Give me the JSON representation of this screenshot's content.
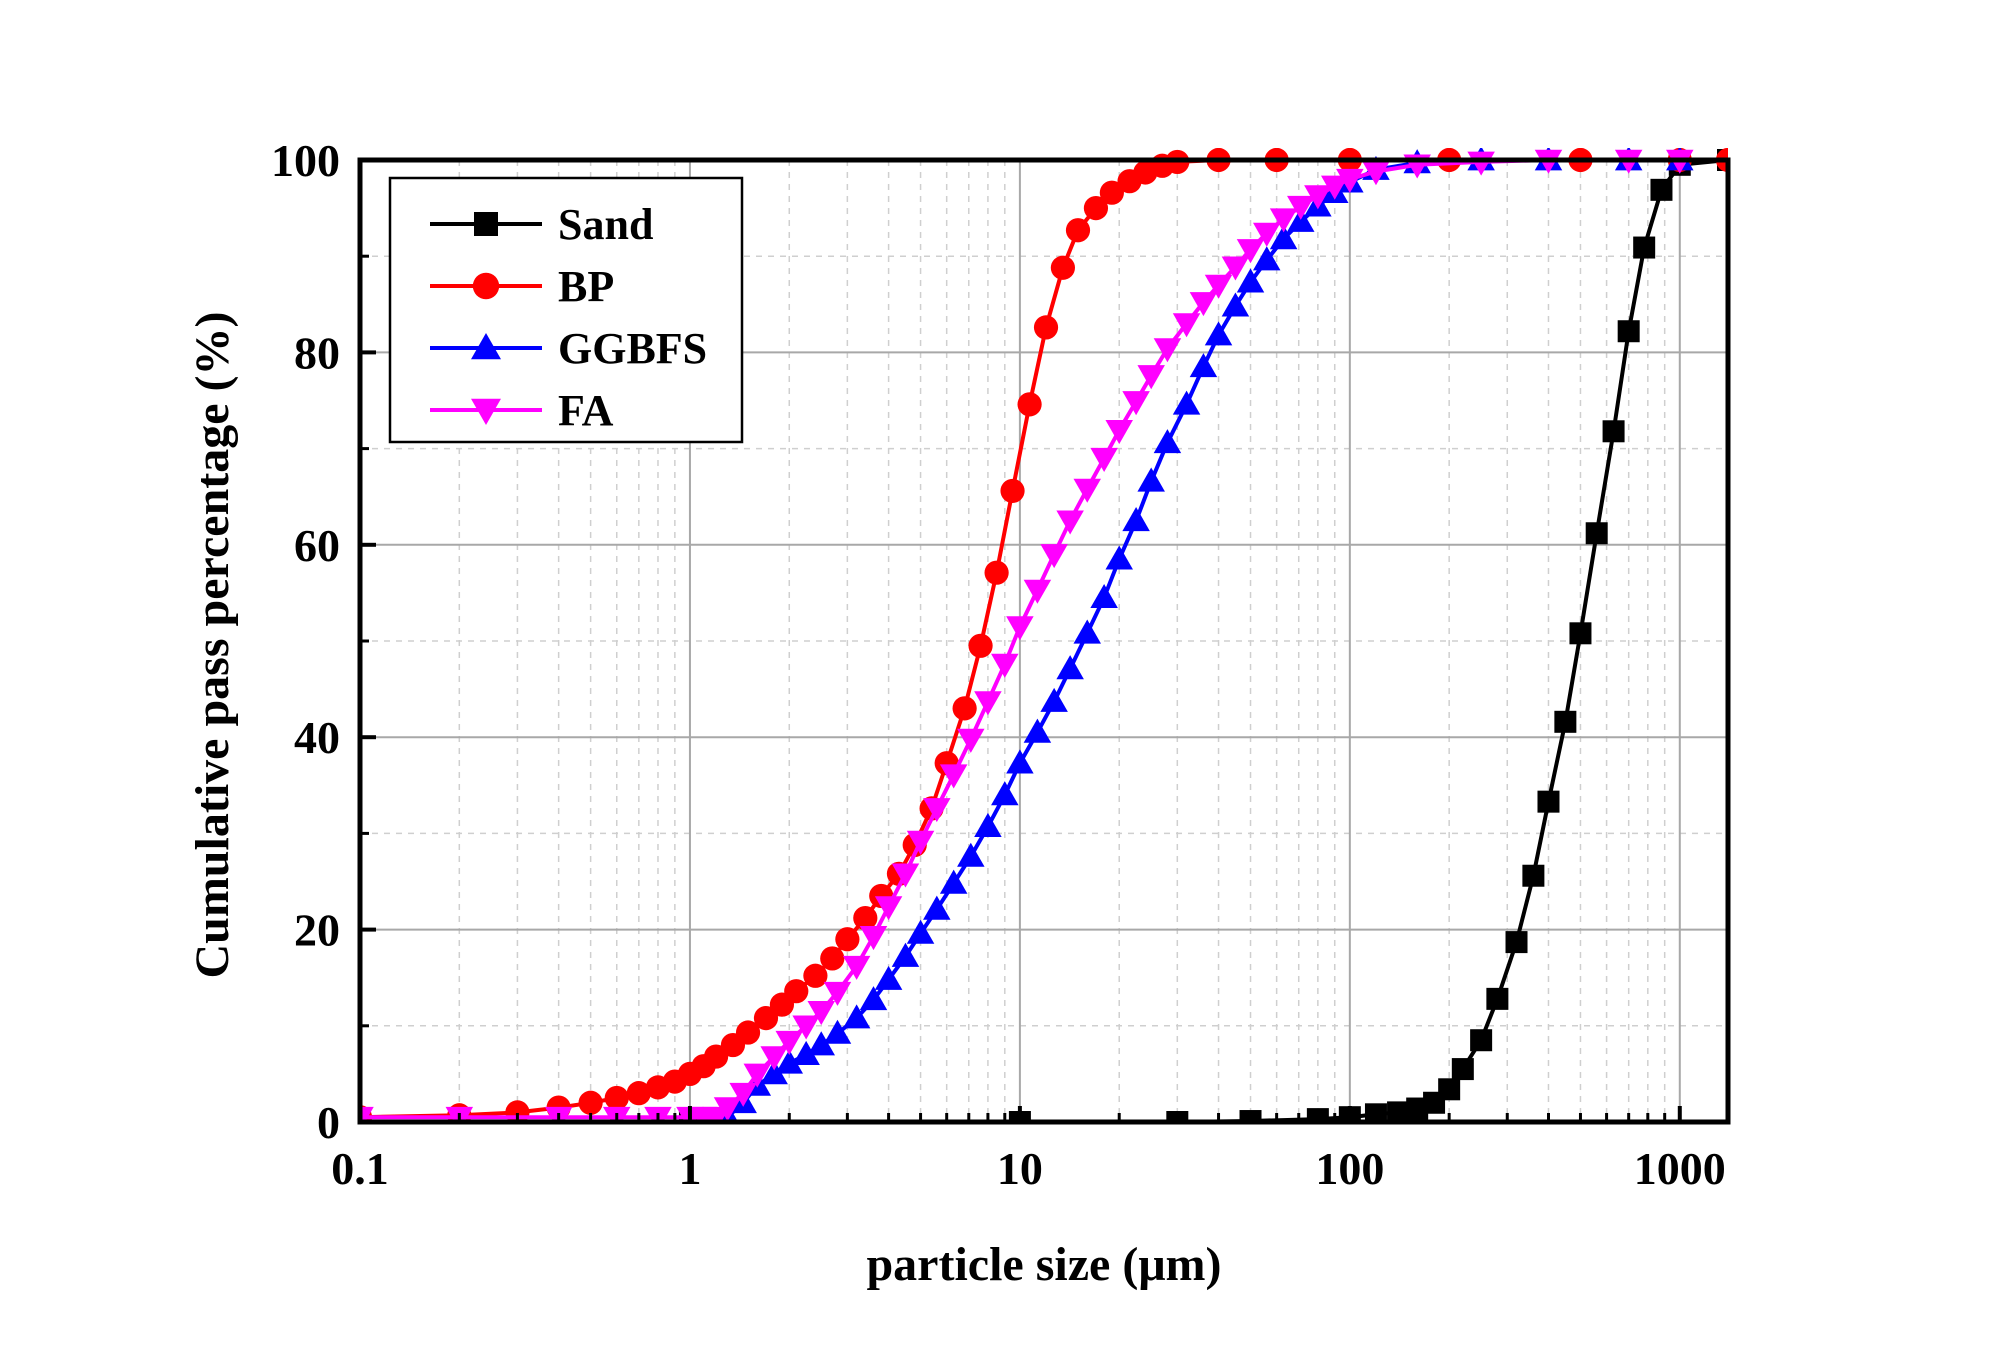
{
  "chart_data": {
    "type": "line",
    "title": "",
    "xlabel": "particle size (μm)",
    "ylabel": "Cumulative pass percentage (%)",
    "xscale": "log",
    "xlim": [
      0.1,
      1400
    ],
    "ylim": [
      0,
      100
    ],
    "x_ticks": [
      {
        "value": 0.1,
        "label": "0.1"
      },
      {
        "value": 1,
        "label": "1"
      },
      {
        "value": 10,
        "label": "10"
      },
      {
        "value": 100,
        "label": "100"
      },
      {
        "value": 1000,
        "label": "1000"
      }
    ],
    "y_ticks": [
      {
        "value": 0,
        "label": "0"
      },
      {
        "value": 20,
        "label": "20"
      },
      {
        "value": 40,
        "label": "40"
      },
      {
        "value": 60,
        "label": "60"
      },
      {
        "value": 80,
        "label": "80"
      },
      {
        "value": 100,
        "label": "100"
      }
    ],
    "grid": true,
    "legend_position": "top-left",
    "series": [
      {
        "name": "Sand",
        "color": "#000000",
        "marker": "square",
        "x": [
          0.1,
          1,
          10,
          30,
          50,
          80,
          100,
          120,
          140,
          160,
          180,
          200,
          220,
          250,
          280,
          320,
          360,
          400,
          450,
          500,
          560,
          630,
          700,
          780,
          880,
          1000,
          1400
        ],
        "y": [
          0,
          0,
          0,
          0,
          0.1,
          0.3,
          0.5,
          0.8,
          1.0,
          1.4,
          2.0,
          3.4,
          5.5,
          8.5,
          12.8,
          18.7,
          25.6,
          33.3,
          41.6,
          50.8,
          61.2,
          71.8,
          82.2,
          90.9,
          96.9,
          99.5,
          100
        ]
      },
      {
        "name": "BP",
        "color": "#ff0000",
        "marker": "circle",
        "x": [
          0.1,
          0.2,
          0.3,
          0.4,
          0.5,
          0.6,
          0.7,
          0.8,
          0.9,
          1.0,
          1.1,
          1.2,
          1.35,
          1.5,
          1.7,
          1.9,
          2.1,
          2.4,
          2.7,
          3.0,
          3.4,
          3.8,
          4.3,
          4.8,
          5.4,
          6.0,
          6.8,
          7.6,
          8.5,
          9.5,
          10.7,
          12.0,
          13.5,
          15.0,
          17.0,
          19.0,
          21.5,
          24.0,
          27.0,
          30.0,
          40.0,
          60.0,
          100,
          200,
          500,
          1000,
          1400
        ],
        "y": [
          0.5,
          0.7,
          1.0,
          1.5,
          2.0,
          2.5,
          3.0,
          3.6,
          4.2,
          5.0,
          5.8,
          6.8,
          8.0,
          9.3,
          10.8,
          12.2,
          13.6,
          15.2,
          17.0,
          19.0,
          21.2,
          23.5,
          25.8,
          28.8,
          32.6,
          37.3,
          43.0,
          49.5,
          57.1,
          65.6,
          74.6,
          82.6,
          88.8,
          92.7,
          95.0,
          96.6,
          97.8,
          98.7,
          99.4,
          99.8,
          100,
          100,
          100,
          100,
          100,
          100,
          100
        ]
      },
      {
        "name": "GGBFS",
        "color": "#0000ff",
        "marker": "triangle-up",
        "x": [
          0.1,
          0.2,
          0.4,
          0.6,
          0.8,
          1.0,
          1.1,
          1.2,
          1.3,
          1.45,
          1.6,
          1.8,
          2.0,
          2.25,
          2.5,
          2.8,
          3.2,
          3.6,
          4.0,
          4.5,
          5.0,
          5.6,
          6.3,
          7.1,
          8.0,
          9.0,
          10.0,
          11.3,
          12.7,
          14.2,
          16.0,
          18.0,
          20.0,
          22.5,
          25.0,
          28.0,
          32.0,
          36.0,
          40.0,
          45.0,
          50.0,
          56.0,
          63.0,
          71.0,
          80.0,
          90.0,
          100,
          120,
          160,
          250,
          400,
          700,
          1000
        ],
        "y": [
          0,
          0,
          0,
          0,
          0,
          0,
          0,
          0,
          0.5,
          2.0,
          3.8,
          5.0,
          6.1,
          7.0,
          8.0,
          9.2,
          10.8,
          12.7,
          14.8,
          17.2,
          19.6,
          22.1,
          24.8,
          27.6,
          30.7,
          34.0,
          37.3,
          40.5,
          43.7,
          47.1,
          50.8,
          54.5,
          58.5,
          62.5,
          66.6,
          70.6,
          74.6,
          78.5,
          81.8,
          84.8,
          87.3,
          89.6,
          91.8,
          93.6,
          95.2,
          96.6,
          97.7,
          99.0,
          99.7,
          100,
          100,
          100,
          100
        ]
      },
      {
        "name": "FA",
        "color": "#ff00ff",
        "marker": "triangle-down",
        "x": [
          0.1,
          0.2,
          0.4,
          0.6,
          0.8,
          1.0,
          1.1,
          1.2,
          1.3,
          1.45,
          1.6,
          1.8,
          2.0,
          2.25,
          2.5,
          2.8,
          3.2,
          3.6,
          4.0,
          4.5,
          5.0,
          5.6,
          6.3,
          7.1,
          8.0,
          9.0,
          10.0,
          11.3,
          12.7,
          14.2,
          16.0,
          18.0,
          20.0,
          22.5,
          25.0,
          28.0,
          32.0,
          36.0,
          40.0,
          45.0,
          50.0,
          56.0,
          63.0,
          71.0,
          80.0,
          90.0,
          100,
          120,
          160,
          250,
          400,
          700,
          1000
        ],
        "y": [
          0.5,
          0.5,
          0.5,
          0.5,
          0.5,
          0.5,
          0.5,
          0.5,
          1.5,
          3.0,
          5.0,
          6.8,
          8.4,
          10.0,
          11.5,
          13.5,
          16.2,
          19.3,
          22.4,
          25.8,
          29.2,
          32.6,
          36.1,
          39.8,
          43.7,
          47.6,
          51.5,
          55.3,
          59.0,
          62.5,
          65.8,
          69.0,
          71.9,
          74.9,
          77.6,
          80.4,
          83.0,
          85.2,
          87.0,
          88.9,
          90.7,
          92.4,
          93.9,
          95.2,
          96.3,
          97.3,
          98.0,
          98.8,
          99.5,
          99.8,
          100,
          100,
          100
        ]
      }
    ]
  }
}
